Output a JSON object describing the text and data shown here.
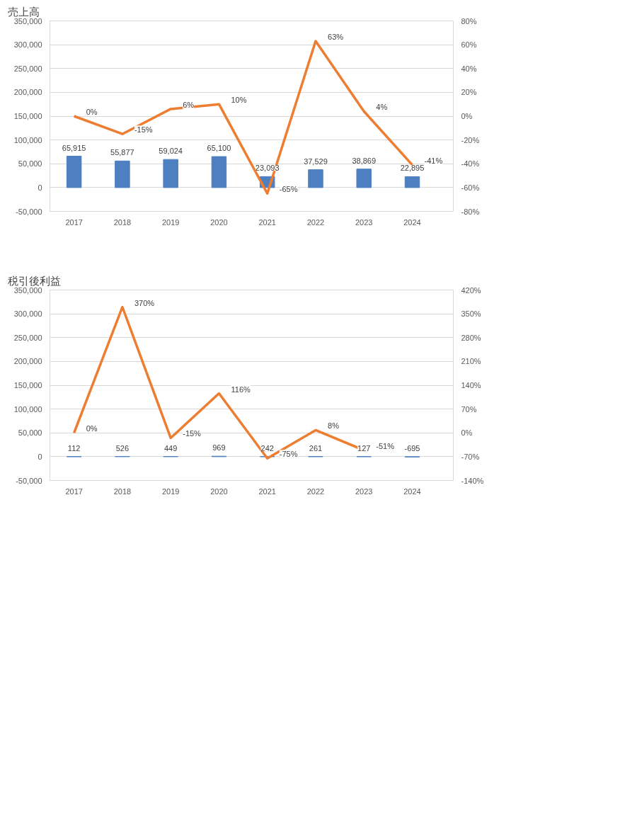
{
  "chart_data": [
    {
      "type": "bar",
      "title": "売上高",
      "categories": [
        "2017",
        "2018",
        "2019",
        "2020",
        "2021",
        "2022",
        "2023",
        "2024"
      ],
      "series": [
        {
          "color": "#4e7fc1",
          "values": [
            65915,
            55877,
            59024,
            65100,
            23093,
            37529,
            38869,
            22895
          ],
          "value_labels": [
            "65,915",
            "55,877",
            "59,024",
            "65,100",
            "23,093",
            "37,529",
            "38,869",
            "22,895"
          ]
        },
        {
          "type": "line",
          "axis": "y2",
          "color": "#ed7d31",
          "values": [
            0,
            -15,
            6,
            10,
            -65,
            63,
            4,
            -41
          ],
          "value_labels": [
            "0%",
            "-15%",
            "6%",
            "10%",
            "-65%",
            "63%",
            "4%",
            "-41%"
          ]
        }
      ],
      "ylim": [
        -50000,
        350000
      ],
      "yticks": [
        {
          "value": -50000,
          "label": "-50,000"
        },
        {
          "value": 0,
          "label": "0"
        },
        {
          "value": 50000,
          "label": "50,000"
        },
        {
          "value": 100000,
          "label": "100,000"
        },
        {
          "value": 150000,
          "label": "150,000"
        },
        {
          "value": 200000,
          "label": "200,000"
        },
        {
          "value": 250000,
          "label": "250,000"
        },
        {
          "value": 300000,
          "label": "300,000"
        },
        {
          "value": 350000,
          "label": "350,000"
        }
      ],
      "y2lim": [
        -80,
        80
      ],
      "y2ticks": [
        {
          "value": -80,
          "label": "-80%"
        },
        {
          "value": -60,
          "label": "-60%"
        },
        {
          "value": -40,
          "label": "-40%"
        },
        {
          "value": -20,
          "label": "-20%"
        },
        {
          "value": 0,
          "label": "0%"
        },
        {
          "value": 20,
          "label": "20%"
        },
        {
          "value": 40,
          "label": "40%"
        },
        {
          "value": 60,
          "label": "60%"
        },
        {
          "value": 80,
          "label": "80%"
        }
      ],
      "grid": "y",
      "marker": "none",
      "line_style": "solid"
    },
    {
      "type": "bar",
      "title": "税引後利益",
      "categories": [
        "2017",
        "2018",
        "2019",
        "2020",
        "2021",
        "2022",
        "2023",
        "2024"
      ],
      "series": [
        {
          "color": "#4e7fc1",
          "values": [
            112,
            526,
            449,
            969,
            242,
            261,
            127,
            -695
          ],
          "value_labels": [
            "112",
            "526",
            "449",
            "969",
            "242",
            "261",
            "127",
            "-695"
          ]
        },
        {
          "type": "line",
          "axis": "y2",
          "color": "#ed7d31",
          "values": [
            0,
            370,
            -15,
            116,
            -75,
            8,
            -51,
            null
          ],
          "value_labels": [
            "0%",
            "370%",
            "-15%",
            "116%",
            "-75%",
            "8%",
            "-51%",
            null
          ]
        }
      ],
      "ylim": [
        -50000,
        350000
      ],
      "yticks": [
        {
          "value": -50000,
          "label": "-50,000"
        },
        {
          "value": 0,
          "label": "0"
        },
        {
          "value": 50000,
          "label": "50,000"
        },
        {
          "value": 100000,
          "label": "100,000"
        },
        {
          "value": 150000,
          "label": "150,000"
        },
        {
          "value": 200000,
          "label": "200,000"
        },
        {
          "value": 250000,
          "label": "250,000"
        },
        {
          "value": 300000,
          "label": "300,000"
        },
        {
          "value": 350000,
          "label": "350,000"
        }
      ],
      "y2lim": [
        -140,
        420
      ],
      "y2ticks": [
        {
          "value": -140,
          "label": "-140%"
        },
        {
          "value": -70,
          "label": "-70%"
        },
        {
          "value": 0,
          "label": "0%"
        },
        {
          "value": 70,
          "label": "70%"
        },
        {
          "value": 140,
          "label": "140%"
        },
        {
          "value": 210,
          "label": "210%"
        },
        {
          "value": 280,
          "label": "280%"
        },
        {
          "value": 350,
          "label": "350%"
        },
        {
          "value": 420,
          "label": "420%"
        }
      ],
      "grid": "y",
      "marker": "none",
      "line_style": "solid"
    }
  ]
}
